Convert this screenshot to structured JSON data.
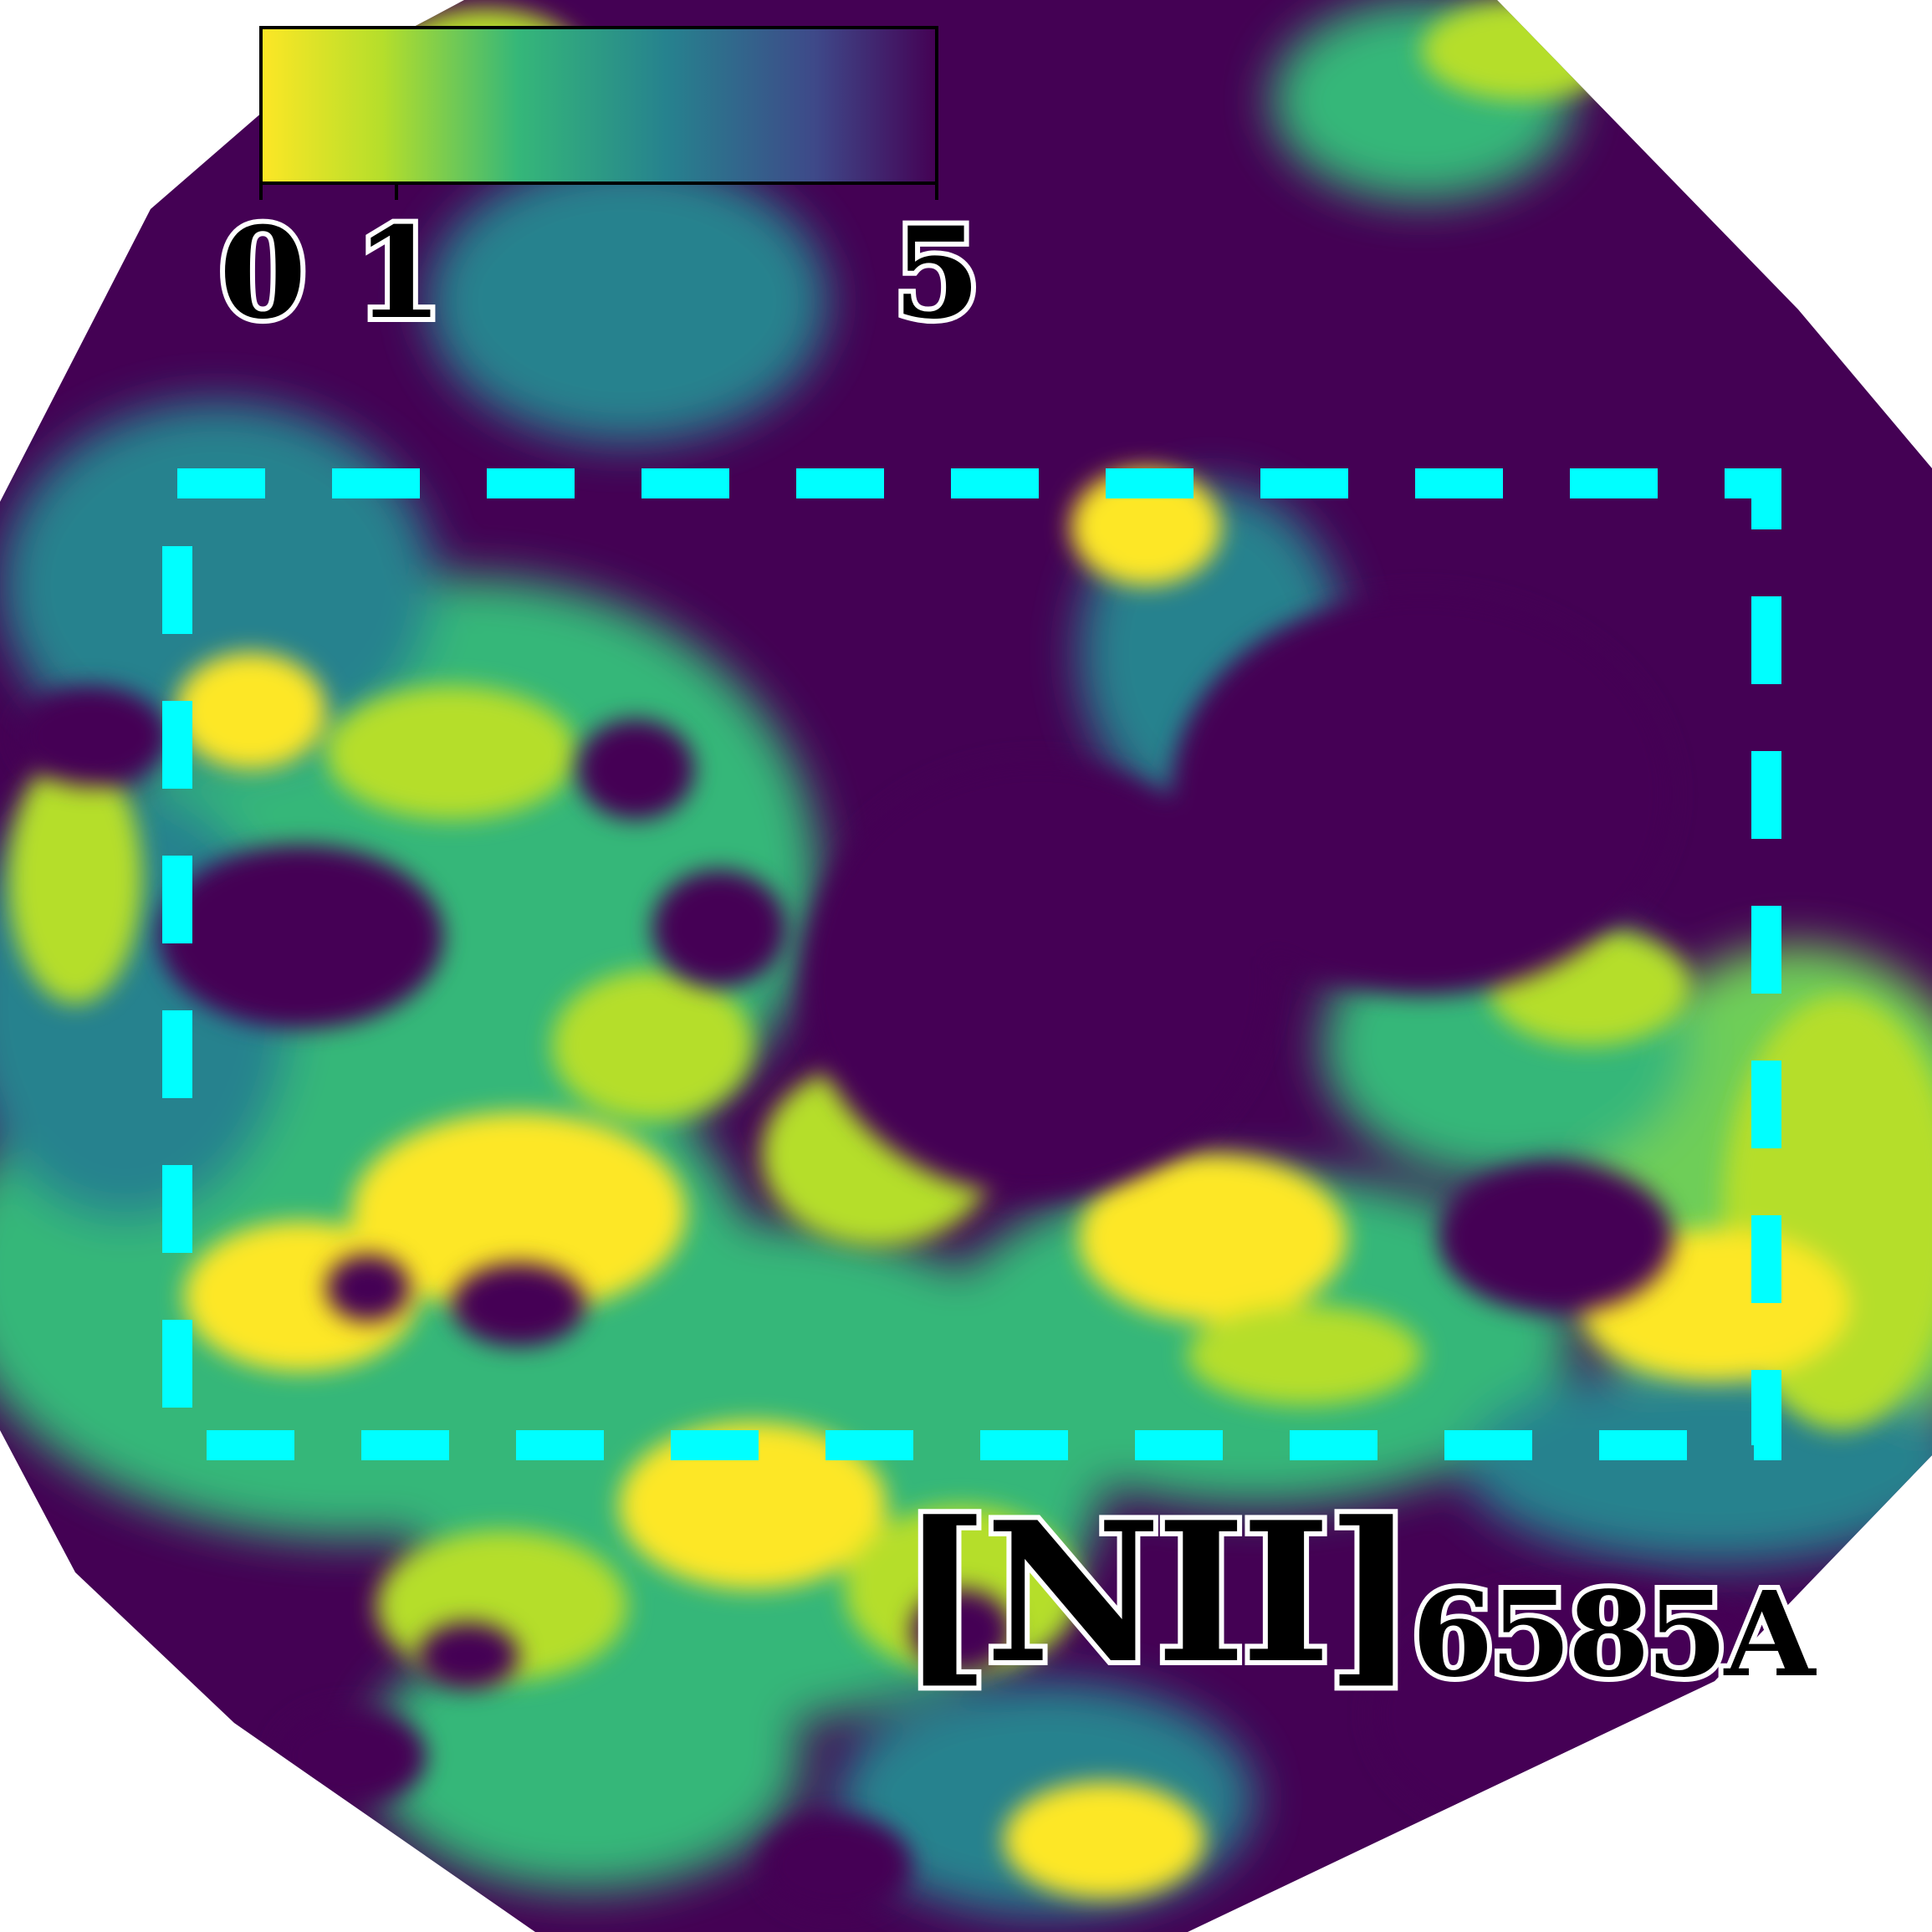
{
  "colorbar": {
    "colormap": "viridis (reversed)",
    "colors": [
      "#fde725",
      "#b5de2b",
      "#35b779",
      "#26828e",
      "#3e4989",
      "#440154"
    ],
    "ticks": [
      "0",
      "1",
      "5"
    ],
    "tick_values": [
      0,
      1,
      5
    ],
    "range": [
      0,
      5
    ]
  },
  "emission_line": {
    "ion": "[NII]",
    "wavelength": "6585A"
  },
  "region_box": {
    "color": "#00ffff",
    "style": "dashed"
  },
  "map": {
    "background_color": "#440154",
    "outline_color": "#ffffff"
  }
}
